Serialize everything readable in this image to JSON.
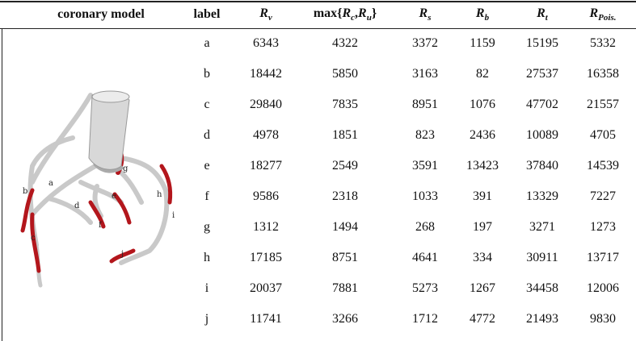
{
  "table": {
    "header": [
      [
        {
          "text": "coronary model",
          "style": "bold"
        }
      ],
      [
        {
          "text": "label",
          "style": "bold"
        }
      ],
      [
        {
          "text": "R",
          "style": "bold-italic"
        },
        {
          "text": "v",
          "style": "sub"
        }
      ],
      [
        {
          "text": "max{",
          "style": "bold"
        },
        {
          "text": "R",
          "style": "bold-italic"
        },
        {
          "text": "c",
          "style": "sub"
        },
        {
          "text": ",",
          "style": "bold"
        },
        {
          "text": "R",
          "style": "bold-italic"
        },
        {
          "text": "u",
          "style": "sub"
        },
        {
          "text": "}",
          "style": "bold"
        }
      ],
      [
        {
          "text": "R",
          "style": "bold-italic"
        },
        {
          "text": "s",
          "style": "sub"
        }
      ],
      [
        {
          "text": "R",
          "style": "bold-italic"
        },
        {
          "text": "b",
          "style": "sub"
        }
      ],
      [
        {
          "text": "R",
          "style": "bold-italic"
        },
        {
          "text": "t",
          "style": "sub"
        }
      ],
      [
        {
          "text": "R",
          "style": "bold-italic"
        },
        {
          "text": "Pois.",
          "style": "sub"
        }
      ]
    ],
    "rows": [
      [
        "a",
        "6343",
        "4322",
        "3372",
        "1159",
        "15195",
        "5332"
      ],
      [
        "b",
        "18442",
        "5850",
        "3163",
        "82",
        "27537",
        "16358"
      ],
      [
        "c",
        "29840",
        "7835",
        "8951",
        "1076",
        "47702",
        "21557"
      ],
      [
        "d",
        "4978",
        "1851",
        "823",
        "2436",
        "10089",
        "4705"
      ],
      [
        "e",
        "18277",
        "2549",
        "3591",
        "13423",
        "37840",
        "14539"
      ],
      [
        "f",
        "9586",
        "2318",
        "1033",
        "391",
        "13329",
        "7227"
      ],
      [
        "g",
        "1312",
        "1494",
        "268",
        "197",
        "3271",
        "1273"
      ],
      [
        "h",
        "17185",
        "8751",
        "4641",
        "334",
        "30911",
        "13717"
      ],
      [
        "i",
        "20037",
        "7881",
        "5273",
        "1267",
        "34458",
        "12006"
      ],
      [
        "j",
        "11741",
        "3266",
        "1712",
        "4772",
        "21493",
        "9830"
      ]
    ]
  },
  "figure": {
    "labels": [
      "a",
      "b",
      "c",
      "d",
      "e",
      "f",
      "g",
      "h",
      "i",
      "j"
    ]
  }
}
